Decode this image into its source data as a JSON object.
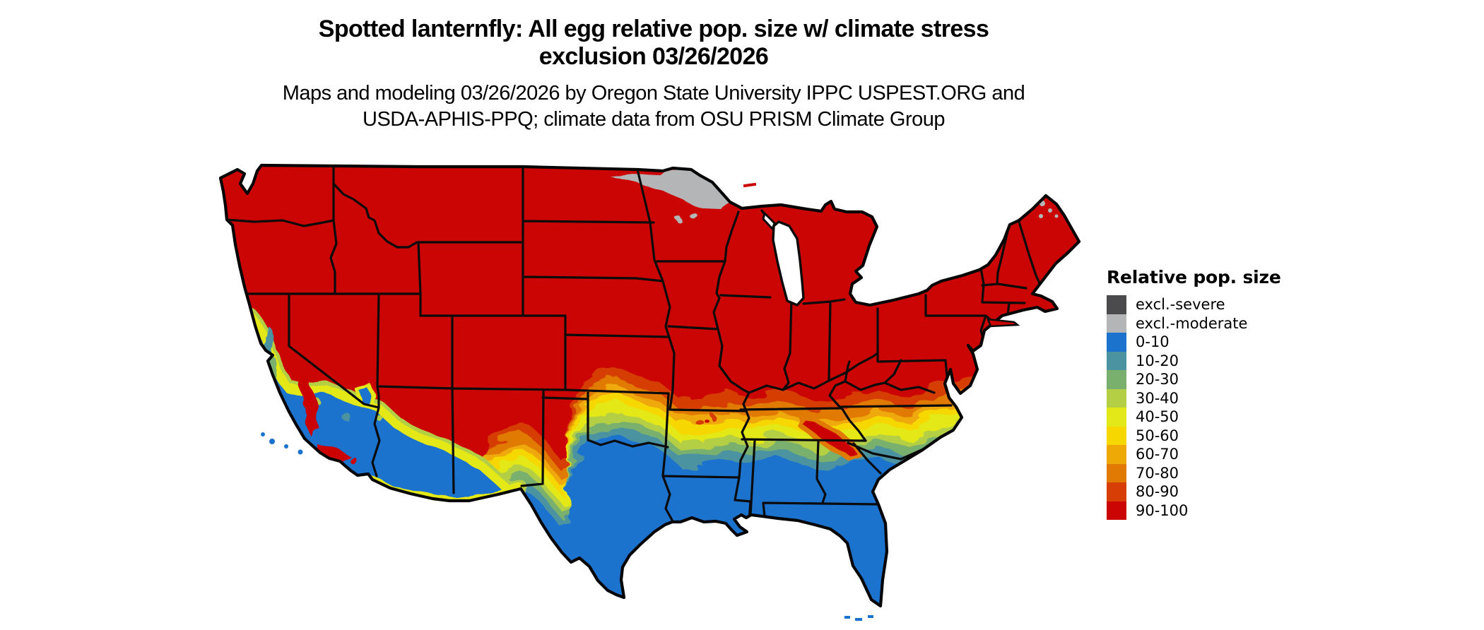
{
  "title": {
    "line1": "Spotted lanternfly: All egg relative pop. size w/ climate stress",
    "line2": "exclusion 03/26/2026"
  },
  "subtitle": {
    "line1": "Maps and modeling 03/26/2026 by Oregon State University IPPC USPEST.ORG and",
    "line2": "USDA-APHIS-PPQ; climate data from OSU PRISM Climate Group"
  },
  "legend": {
    "title": "Relative pop. size",
    "items": [
      {
        "label": "excl.-severe",
        "color": "#4B4B4D"
      },
      {
        "label": "excl.-moderate",
        "color": "#B4B5B6"
      },
      {
        "label": "0-10",
        "color": "#1B73CE"
      },
      {
        "label": "10-20",
        "color": "#4C93A1"
      },
      {
        "label": "20-30",
        "color": "#7AB06E"
      },
      {
        "label": "30-40",
        "color": "#B5CF45"
      },
      {
        "label": "40-50",
        "color": "#E3E818"
      },
      {
        "label": "50-60",
        "color": "#F6D800"
      },
      {
        "label": "60-70",
        "color": "#EFA907"
      },
      {
        "label": "70-80",
        "color": "#E17A02"
      },
      {
        "label": "80-90",
        "color": "#D63E05"
      },
      {
        "label": "90-100",
        "color": "#CB0404"
      }
    ]
  },
  "map": {
    "type": "choropleth raster map",
    "area": "Conterminous United States with state boundaries",
    "background": "#ffffff",
    "boundary_color": "#000000",
    "regions": [
      {
        "area": "Northern and central United States (Pacific Northwest, Rockies, Plains, Midwest, Northeast, mid-Atlantic)",
        "class": "90-100"
      },
      {
        "area": "Northeastern Minnesota arrowhead and scattered pixels in northern Maine",
        "class": "excl.-moderate"
      },
      {
        "area": "Southern Texas, Gulf Coast, Louisiana, southern Mississippi / Alabama / Georgia, Florida, coastal Carolinas",
        "class": "0-10"
      },
      {
        "area": "East-west transition band from New Mexico / Texas panhandle across Oklahoma, Arkansas and the Deep South to the Carolina coast",
        "class": "10-90 gradient (blue to orange going north)"
      },
      {
        "area": "California Central Valley, central/southern California, southern Nevada tip and southwestern Arizona",
        "class": "0-20 with 30-50 fringe and red mountain patches"
      },
      {
        "area": "Southern Appalachians dipping into western North Carolina and north Georgia",
        "class": "80-100"
      }
    ]
  }
}
